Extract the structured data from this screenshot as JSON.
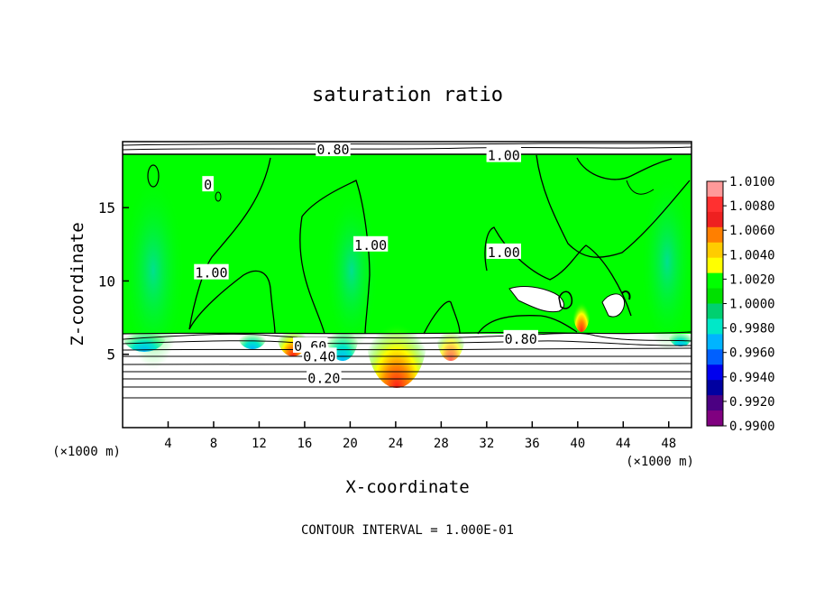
{
  "chart_data": {
    "type": "heatmap",
    "title": "saturation ratio",
    "xlabel": "X-coordinate",
    "ylabel": "Z-coordinate",
    "x_units": "(×1000 m)",
    "z_units": "(×1000 m)",
    "xlim": [
      0,
      50
    ],
    "ylim": [
      0,
      19.5
    ],
    "x_ticks": [
      4,
      8,
      12,
      16,
      20,
      24,
      28,
      32,
      36,
      40,
      44,
      48
    ],
    "y_ticks": [
      5,
      10,
      15
    ],
    "colorbar": {
      "labels": [
        "1.0100",
        "1.0080",
        "1.0060",
        "1.0040",
        "1.0020",
        "1.0000",
        "0.9980",
        "0.9960",
        "0.9940",
        "0.9920",
        "0.9900"
      ],
      "colors": [
        "#ff9999",
        "#ff3030",
        "#ee2020",
        "#ff7f00",
        "#ffcc00",
        "#ffff00",
        "#00ff00",
        "#00e000",
        "#00d070",
        "#00e8c8",
        "#00b4ff",
        "#0060ff",
        "#0000ee",
        "#0000a0",
        "#4b0082",
        "#800080"
      ],
      "range": [
        0.99,
        1.01
      ]
    },
    "contour_labels": [
      {
        "text": "0.80",
        "x": 18.5,
        "y": 19.0
      },
      {
        "text": "1.00",
        "x": 33.5,
        "y": 18.6
      },
      {
        "text": "0",
        "x": 7.5,
        "y": 16.6
      },
      {
        "text": "1.00",
        "x": 7.8,
        "y": 10.6
      },
      {
        "text": "1.00",
        "x": 21.8,
        "y": 12.5
      },
      {
        "text": "1.00",
        "x": 33.5,
        "y": 12.0
      },
      {
        "text": "0.80",
        "x": 35.0,
        "y": 6.1
      },
      {
        "text": "0.60",
        "x": 16.5,
        "y": 5.6
      },
      {
        "text": "0.40",
        "x": 17.3,
        "y": 4.9
      },
      {
        "text": "0.20",
        "x": 17.7,
        "y": 3.4
      }
    ],
    "footer": "CONTOUR INTERVAL = 1.000E-01"
  }
}
